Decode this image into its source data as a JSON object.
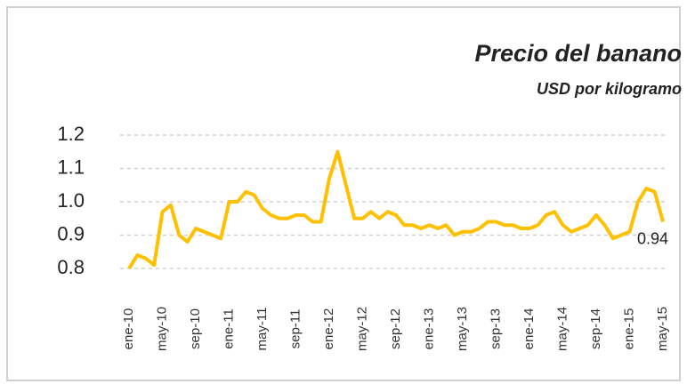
{
  "chart_data": {
    "type": "line",
    "title": "Precio del banano",
    "subtitle": "USD por kilogramo",
    "categories": [
      "ene-10",
      null,
      null,
      null,
      "may-10",
      null,
      null,
      null,
      "sep-10",
      null,
      null,
      null,
      "ene-11",
      null,
      null,
      null,
      "may-11",
      null,
      null,
      null,
      "sep-11",
      null,
      null,
      null,
      "ene-12",
      null,
      null,
      null,
      "may-12",
      null,
      null,
      null,
      "sep-12",
      null,
      null,
      null,
      "ene-13",
      null,
      null,
      null,
      "may-13",
      null,
      null,
      null,
      "sep-13",
      null,
      null,
      null,
      "ene-14",
      null,
      null,
      null,
      "may-14",
      null,
      null,
      null,
      "sep-14",
      null,
      null,
      null,
      "ene-15",
      null,
      null,
      null,
      "may-15"
    ],
    "series": [
      {
        "name": "Precio del banano",
        "color": "#FFC000",
        "values": [
          0.8,
          0.84,
          0.83,
          0.81,
          0.97,
          0.99,
          0.9,
          0.88,
          0.92,
          0.91,
          0.9,
          0.89,
          1.0,
          1.0,
          1.03,
          1.02,
          0.98,
          0.96,
          0.95,
          0.95,
          0.96,
          0.96,
          0.94,
          0.94,
          1.07,
          1.15,
          1.05,
          0.95,
          0.95,
          0.97,
          0.95,
          0.97,
          0.96,
          0.93,
          0.93,
          0.92,
          0.93,
          0.92,
          0.93,
          0.9,
          0.91,
          0.91,
          0.92,
          0.94,
          0.94,
          0.93,
          0.93,
          0.92,
          0.92,
          0.93,
          0.96,
          0.97,
          0.93,
          0.91,
          0.92,
          0.93,
          0.96,
          0.93,
          0.89,
          0.9,
          0.91,
          1.0,
          1.04,
          1.03,
          0.94
        ]
      }
    ],
    "ylim": [
      0.8,
      1.2
    ],
    "yticks": [
      0.8,
      0.9,
      {
        "value": 1,
        "label": "1.0"
      },
      1.1,
      1.2
    ],
    "grid": true,
    "label_last": true
  }
}
